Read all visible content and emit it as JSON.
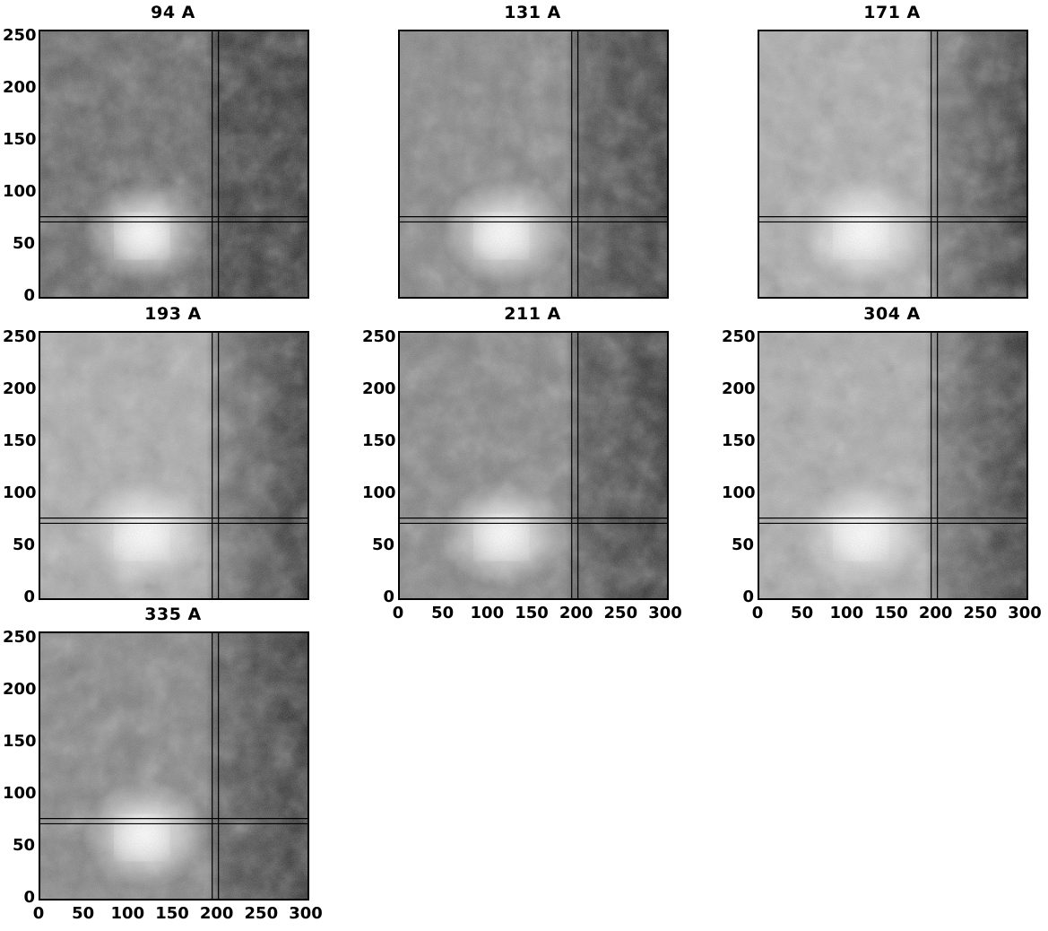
{
  "figure": {
    "panels": [
      {
        "title": "94 A",
        "show_y_ticks": true,
        "show_x_ticks": false,
        "tone": "dark"
      },
      {
        "title": "131 A",
        "show_y_ticks": false,
        "show_x_ticks": false,
        "tone": "mid"
      },
      {
        "title": "171 A",
        "show_y_ticks": false,
        "show_x_ticks": false,
        "tone": "light"
      },
      {
        "title": "193 A",
        "show_y_ticks": true,
        "show_x_ticks": false,
        "tone": "light"
      },
      {
        "title": "211 A",
        "show_y_ticks": true,
        "show_x_ticks": true,
        "tone": "mid"
      },
      {
        "title": "304 A",
        "show_y_ticks": true,
        "show_x_ticks": true,
        "tone": "light"
      },
      {
        "title": "335 A",
        "show_y_ticks": true,
        "show_x_ticks": true,
        "tone": "mid"
      }
    ],
    "y_ticks": [
      "0",
      "50",
      "100",
      "150",
      "200",
      "250"
    ],
    "x_ticks": [
      "0",
      "50",
      "100",
      "150",
      "200",
      "250",
      "300"
    ],
    "crosshair": {
      "x_data": [
        193,
        200
      ],
      "y_data": [
        72,
        77
      ]
    },
    "x_range": [
      0,
      300
    ],
    "y_range": [
      0,
      255
    ]
  }
}
